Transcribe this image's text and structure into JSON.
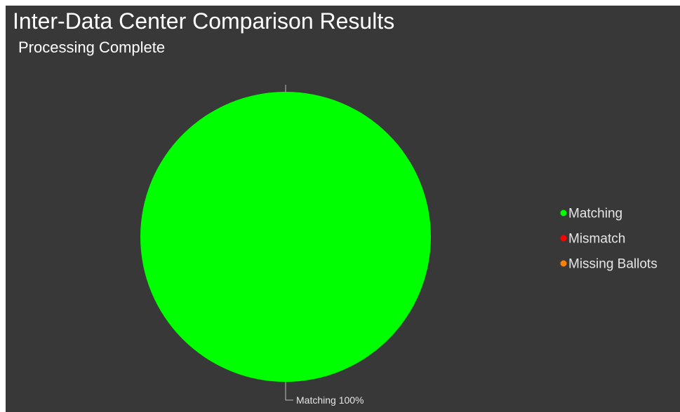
{
  "chart_data": {
    "type": "pie",
    "title": "Inter-Data Center Comparison Results",
    "subtitle": "Processing Complete",
    "categories": [
      "Matching",
      "Mismatch",
      "Missing Ballots"
    ],
    "values": [
      100,
      0,
      0
    ],
    "colors": [
      "#00ff00",
      "#ff0000",
      "#ff8000"
    ],
    "data_labels": [
      "Matching 100%"
    ],
    "legend": {
      "position": "right",
      "items": [
        "Matching",
        "Mismatch",
        "Missing Ballots"
      ]
    }
  },
  "theme": {
    "background": "#383838",
    "text_color": "#ffffff",
    "legend_text_color": "#e6e6e6",
    "label_text_color": "#e6e6e6",
    "connector_color": "#bdbdbd"
  }
}
